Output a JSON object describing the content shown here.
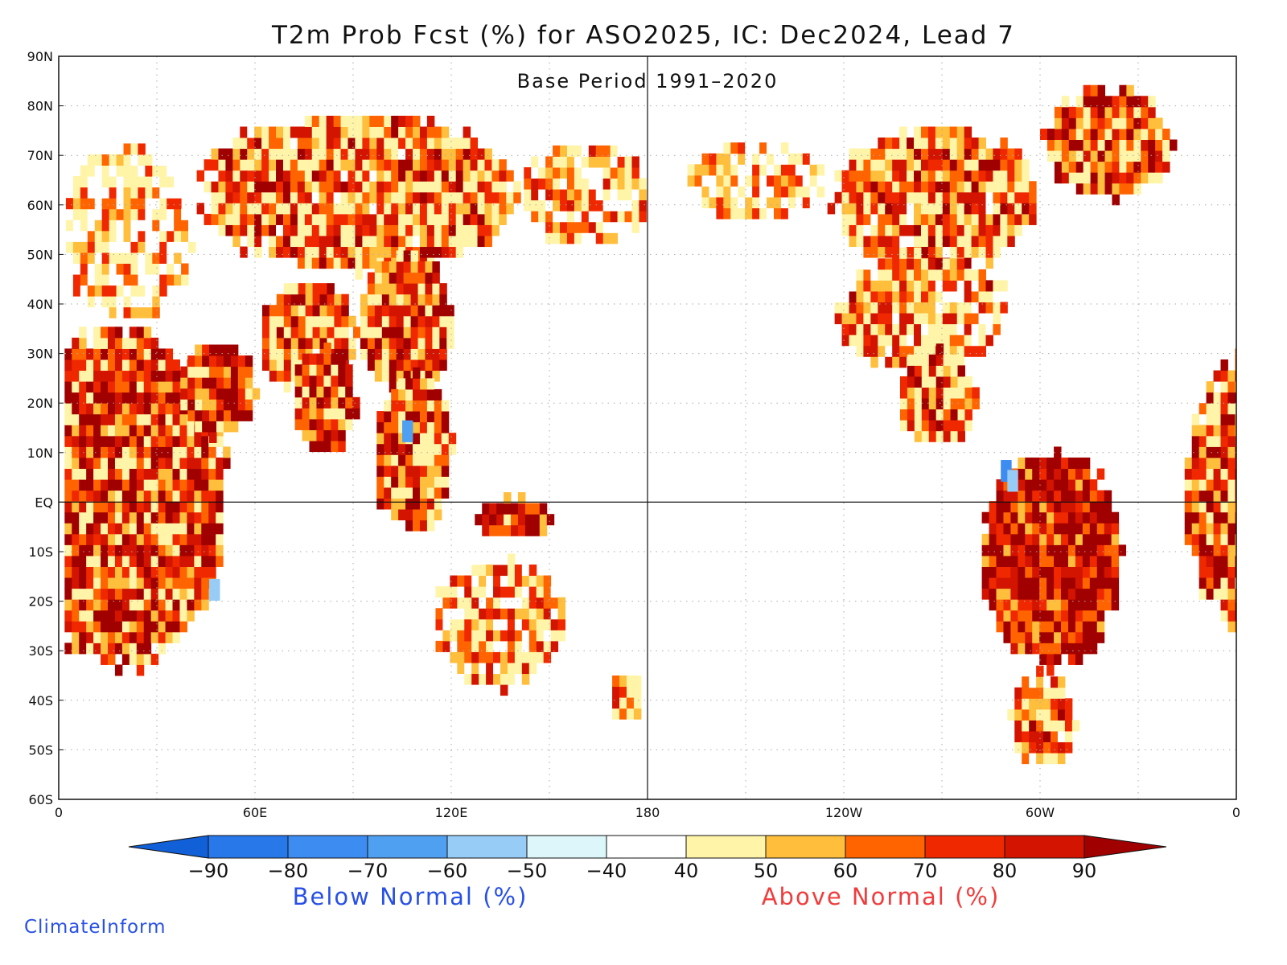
{
  "title": "T2m Prob Fcst (%) for ASO2025, IC: Dec2024, Lead 7",
  "subtitle": "Base Period 1991–2020",
  "lat_ticks": [
    "90N",
    "80N",
    "70N",
    "60N",
    "50N",
    "40N",
    "30N",
    "20N",
    "10N",
    "EQ",
    "10S",
    "20S",
    "30S",
    "40S",
    "50S",
    "60S"
  ],
  "lon_ticks": [
    "0",
    "60E",
    "120E",
    "180",
    "120W",
    "60W",
    "0"
  ],
  "colorbar": {
    "labels": [
      "−90",
      "−80",
      "−70",
      "−60",
      "−50",
      "−40",
      "40",
      "50",
      "60",
      "70",
      "80",
      "90"
    ],
    "colors": [
      "#1260d8",
      "#2878ea",
      "#3c8cf2",
      "#50a0f2",
      "#96ccf6",
      "#dcf6fa",
      "#ffffff",
      "#fff4a8",
      "#ffbe3c",
      "#ff6400",
      "#f02800",
      "#d21400",
      "#a00000"
    ]
  },
  "below_label": "Below Normal (%)",
  "above_label": "Above Normal (%)",
  "below_color": "#2850e6",
  "above_color": "#f03c3c",
  "credit": "ClimateInform",
  "credit_color": "#2850e6"
}
